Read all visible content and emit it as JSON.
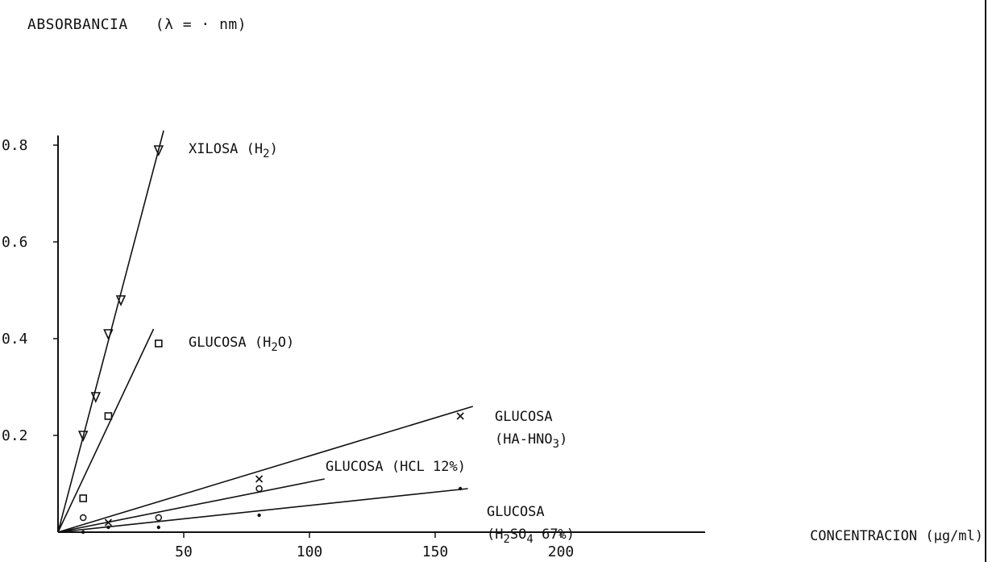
{
  "chart_data": {
    "type": "line",
    "title": "",
    "ylabel": "ABSORBANCIA",
    "ylabel_suffix": "(λ = · nm)",
    "xlabel": "CONCENTRACION (μg/ml)",
    "xlim": [
      0,
      260
    ],
    "ylim": [
      0,
      0.82
    ],
    "xticks": [
      {
        "value": 50,
        "label": "50"
      },
      {
        "value": 100,
        "label": "100"
      },
      {
        "value": 150,
        "label": "150"
      },
      {
        "value": 200,
        "label": "200"
      }
    ],
    "yticks": [
      {
        "value": 0.2,
        "label": "0.2"
      },
      {
        "value": 0.4,
        "label": "0.4"
      },
      {
        "value": 0.6,
        "label": "0.6"
      },
      {
        "value": 0.8,
        "label": "0.8"
      }
    ],
    "grid": false,
    "series": [
      {
        "name": "XILOSA (H2)",
        "label_main": "XILOSA (H",
        "label_sub": "2",
        "label_end": ")",
        "marker": "triangle-down",
        "line_end": [
          42,
          0.83
        ],
        "points": [
          [
            10,
            0.2
          ],
          [
            15,
            0.28
          ],
          [
            20,
            0.41
          ],
          [
            25,
            0.48
          ],
          [
            40,
            0.79
          ]
        ]
      },
      {
        "name": "GLUCOSA (H2O)",
        "label_main": "GLUCOSA (H",
        "label_sub": "2",
        "label_end": "O)",
        "marker": "square",
        "line_end": [
          38,
          0.42
        ],
        "points": [
          [
            10,
            0.07
          ],
          [
            20,
            0.24
          ],
          [
            40,
            0.39
          ]
        ]
      },
      {
        "name": "GLUCOSA (HA-HNO3)",
        "label_line1": "GLUCOSA",
        "label_main": "(HA-HNO",
        "label_sub": "3",
        "label_end": ")",
        "marker": "x",
        "line_end": [
          165,
          0.26
        ],
        "points": [
          [
            20,
            0.02
          ],
          [
            80,
            0.11
          ],
          [
            160,
            0.24
          ]
        ]
      },
      {
        "name": "GLUCOSA (HCL 12%)",
        "label_main": "GLUCOSA (HCL 12%)",
        "marker": "circle",
        "line_end": [
          106,
          0.11
        ],
        "points": [
          [
            10,
            0.03
          ],
          [
            40,
            0.03
          ],
          [
            80,
            0.09
          ]
        ]
      },
      {
        "name": "GLUCOSA (H2SO4 67%)",
        "label_line1": "GLUCOSA",
        "label_main": "(H",
        "label_sub": "2",
        "label_mid": "SO",
        "label_sub2": "4",
        "label_end": " 67%)",
        "marker": "dot",
        "line_end": [
          163,
          0.09
        ],
        "points": [
          [
            10,
            0.0
          ],
          [
            20,
            0.01
          ],
          [
            40,
            0.01
          ],
          [
            80,
            0.035
          ],
          [
            160,
            0.09
          ]
        ]
      }
    ]
  }
}
